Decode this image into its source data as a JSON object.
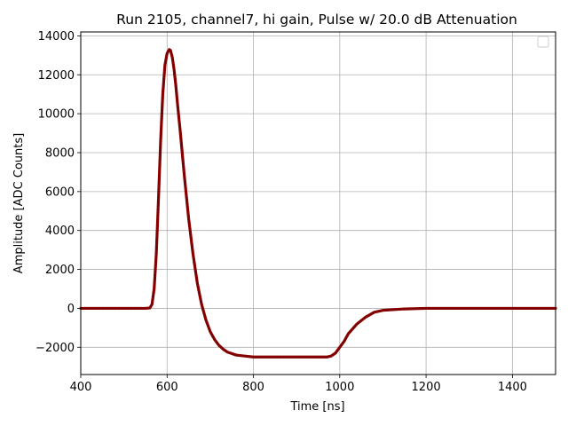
{
  "chart_data": {
    "type": "line",
    "title": "Run 2105, channel7, hi gain, Pulse w/ 20.0 dB Attenuation",
    "xlabel": "Time [ns]",
    "ylabel": "Amplitude [ADC Counts]",
    "xlim": [
      400,
      1500
    ],
    "ylim": [
      -3400,
      14200
    ],
    "xticks": [
      400,
      600,
      800,
      1000,
      1200,
      1400
    ],
    "yticks": [
      -2000,
      0,
      2000,
      4000,
      6000,
      8000,
      10000,
      12000,
      14000
    ],
    "ytick_labels": [
      "−2000",
      "0",
      "2000",
      "4000",
      "6000",
      "8000",
      "10000",
      "12000",
      "14000"
    ],
    "grid": true,
    "legend": "top-right (empty)",
    "color": "#8b0000",
    "series": [
      {
        "x": [
          400,
          450,
          500,
          550,
          560,
          565,
          570,
          575,
          580,
          585,
          590,
          595,
          600,
          605,
          608,
          612,
          616,
          620,
          625,
          630,
          640,
          650,
          660,
          670,
          680,
          690,
          700,
          710,
          720,
          730,
          740,
          760,
          780,
          800,
          850,
          900,
          950,
          970,
          980,
          990,
          1000,
          1010,
          1020,
          1040,
          1060,
          1080,
          1100,
          1150,
          1200,
          1300,
          1400,
          1500
        ],
        "y": [
          0,
          0,
          0,
          0,
          20,
          200,
          1000,
          2800,
          5600,
          8600,
          11000,
          12500,
          13100,
          13300,
          13250,
          12900,
          12300,
          11500,
          10300,
          9200,
          6800,
          4600,
          2800,
          1300,
          200,
          -600,
          -1200,
          -1600,
          -1900,
          -2100,
          -2250,
          -2400,
          -2450,
          -2500,
          -2500,
          -2500,
          -2500,
          -2500,
          -2450,
          -2300,
          -2000,
          -1700,
          -1300,
          -800,
          -450,
          -200,
          -100,
          -30,
          0,
          0,
          0,
          0
        ]
      }
    ]
  }
}
